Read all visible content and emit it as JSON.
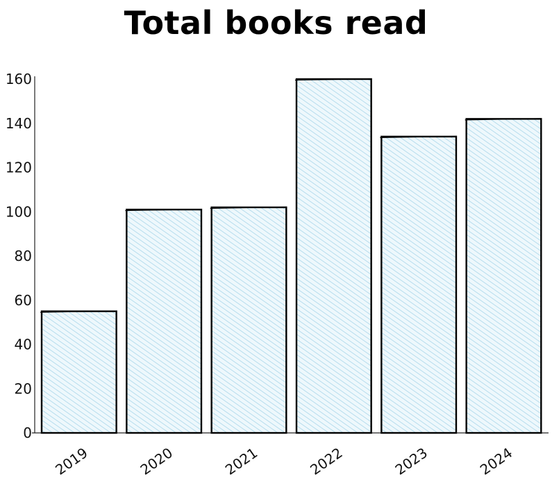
{
  "chart_data": {
    "type": "bar",
    "title": "Total books read",
    "xlabel": "",
    "ylabel": "",
    "categories": [
      "2019",
      "2020",
      "2021",
      "2022",
      "2023",
      "2024"
    ],
    "values": [
      55,
      101,
      102,
      160,
      134,
      142
    ],
    "ylim": [
      0,
      160
    ],
    "yticks": [
      0,
      20,
      40,
      60,
      80,
      100,
      120,
      140,
      160
    ],
    "grid": false,
    "bar_fill": "#c9e6f2",
    "bar_stroke": "#000000"
  }
}
